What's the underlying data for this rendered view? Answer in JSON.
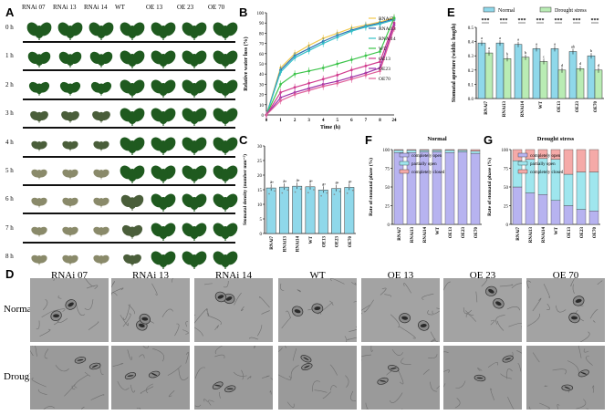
{
  "panel_labels": [
    "A",
    "B",
    "C",
    "D",
    "E",
    "F",
    "G"
  ],
  "panelA": {
    "columns": [
      "RNAi 07",
      "RNAi 13",
      "RNAi 14",
      "WT",
      "OE 13",
      "OE 23",
      "OE 70"
    ],
    "rows": [
      "0 h",
      "1 h",
      "2 h",
      "3 h",
      "4 h",
      "5 h",
      "6 h",
      "7 h",
      "8 h"
    ],
    "colors": {
      "fresh": "#1f5a1f",
      "wilted": "#4a5e3a",
      "dry": "#8a8a6a"
    }
  },
  "panelD": {
    "columns": [
      "RNAi 07",
      "RNAi 13",
      "RNAi 14",
      "WT",
      "OE 13",
      "OE 23",
      "OE 70"
    ],
    "rows": [
      "Normal",
      "Drought"
    ]
  },
  "chart_data": [
    {
      "panel": "B",
      "type": "line",
      "xlabel": "Time (h)",
      "ylabel": "Relative water loss (%)",
      "x": [
        "0",
        "1",
        "2",
        "3",
        "4",
        "5",
        "6",
        "7",
        "8",
        "24"
      ],
      "ylim": [
        0,
        100
      ],
      "yticks": [
        "0",
        "10",
        "20",
        "30",
        "40",
        "50",
        "60",
        "70",
        "80",
        "90",
        "100"
      ],
      "series": [
        {
          "name": "RNAi7",
          "color": "#f2c94c",
          "values": [
            0,
            46,
            60,
            68,
            75,
            80,
            85,
            88,
            91,
            95
          ]
        },
        {
          "name": "RNAi13",
          "color": "#2f6fb0",
          "values": [
            0,
            44,
            58,
            65,
            72,
            78,
            83,
            87,
            90,
            94
          ]
        },
        {
          "name": "RNAi14",
          "color": "#35c0c8",
          "values": [
            0,
            42,
            56,
            63,
            70,
            76,
            82,
            86,
            89,
            93
          ]
        },
        {
          "name": "WT",
          "color": "#3cc44a",
          "values": [
            0,
            30,
            40,
            43,
            46,
            50,
            54,
            58,
            62,
            95
          ]
        },
        {
          "name": "OE13",
          "color": "#d13b8e",
          "values": [
            0,
            22,
            27,
            31,
            35,
            39,
            44,
            48,
            52,
            90
          ]
        },
        {
          "name": "OE23",
          "color": "#9b2fa8",
          "values": [
            0,
            17,
            22,
            26,
            30,
            33,
            37,
            41,
            46,
            88
          ]
        },
        {
          "name": "OE70",
          "color": "#e0609a",
          "values": [
            0,
            14,
            20,
            24,
            28,
            31,
            35,
            39,
            43,
            85
          ]
        }
      ]
    },
    {
      "panel": "C",
      "type": "bar",
      "ylabel": "Stomatal density (number mm⁻²)",
      "categories": [
        "RNAi7",
        "RNAi13",
        "RNAi14",
        "WT",
        "OE13",
        "OE23",
        "OE70"
      ],
      "values": [
        15.6,
        15.9,
        16.2,
        16.0,
        14.9,
        15.4,
        15.8
      ],
      "ylim": [
        0,
        30
      ],
      "yticks": [
        "0",
        "5",
        "10",
        "15",
        "20",
        "25",
        "30"
      ],
      "letters": [
        "a",
        "a",
        "a",
        "a",
        "a",
        "a",
        "a"
      ],
      "color": "#8fd8ea"
    },
    {
      "panel": "E",
      "type": "bar",
      "ylabel": "Stomatal aperture (width: length)",
      "categories": [
        "RNAi7",
        "RNAi13",
        "RNAi14",
        "WT",
        "OE13",
        "OE23",
        "OE70"
      ],
      "ylim": [
        0,
        0.5
      ],
      "yticks": [
        "0.0",
        "0.1",
        "0.2",
        "0.3",
        "0.4",
        "0.5"
      ],
      "series": [
        {
          "name": "Normal",
          "color": "#8fd8ea",
          "values": [
            0.39,
            0.39,
            0.38,
            0.35,
            0.35,
            0.33,
            0.3
          ]
        },
        {
          "name": "Drought stress",
          "color": "#b9ecb4",
          "values": [
            0.32,
            0.28,
            0.29,
            0.26,
            0.2,
            0.21,
            0.2
          ]
        }
      ],
      "letters_normal": [
        "a",
        "a",
        "a",
        "a",
        "a",
        "ab",
        "b"
      ],
      "letters_drought": [
        "a",
        "b",
        "b",
        "c",
        "d",
        "d",
        "d"
      ],
      "significance": [
        "***",
        "***",
        "***",
        "***",
        "***",
        "***",
        "***"
      ]
    },
    {
      "panel": "F",
      "type": "bar",
      "title": "Normal",
      "ylabel": "Rate of stomatal phase (%)",
      "categories": [
        "RNAi7",
        "RNAi13",
        "RNAi14",
        "WT",
        "OE13",
        "OE23",
        "OE70"
      ],
      "ylim": [
        0,
        100
      ],
      "yticks": [
        "0",
        "25",
        "50",
        "75",
        "100"
      ],
      "series": [
        {
          "name": "completely open",
          "color": "#b7b3f0",
          "values": [
            96,
            96,
            97,
            97,
            96,
            97,
            95
          ]
        },
        {
          "name": "partially open",
          "color": "#9fe6ee",
          "values": [
            3,
            3,
            2,
            2,
            3,
            2,
            3
          ]
        },
        {
          "name": "completely closed",
          "color": "#f5aaa8",
          "values": [
            1,
            1,
            1,
            1,
            1,
            1,
            2
          ]
        }
      ],
      "legend": [
        "completely open",
        "partially open",
        "completely closed"
      ]
    },
    {
      "panel": "G",
      "type": "bar",
      "title": "Drought stress",
      "ylabel": "Rate of stomatal phase (%)",
      "categories": [
        "RNAi7",
        "RNAi13",
        "RNAi14",
        "WT",
        "OE13",
        "OE23",
        "OE70"
      ],
      "ylim": [
        0,
        100
      ],
      "yticks": [
        "0",
        "25",
        "50",
        "75",
        "100"
      ],
      "series": [
        {
          "name": "completely open",
          "color": "#b7b3f0",
          "values": [
            50,
            42,
            40,
            32,
            25,
            20,
            18
          ]
        },
        {
          "name": "partially open",
          "color": "#9fe6ee",
          "values": [
            35,
            45,
            48,
            55,
            42,
            50,
            52
          ]
        },
        {
          "name": "completely closed",
          "color": "#f5aaa8",
          "values": [
            15,
            13,
            12,
            13,
            33,
            30,
            30
          ]
        }
      ],
      "legend": [
        "completely open",
        "partially open",
        "completely closed"
      ]
    }
  ]
}
